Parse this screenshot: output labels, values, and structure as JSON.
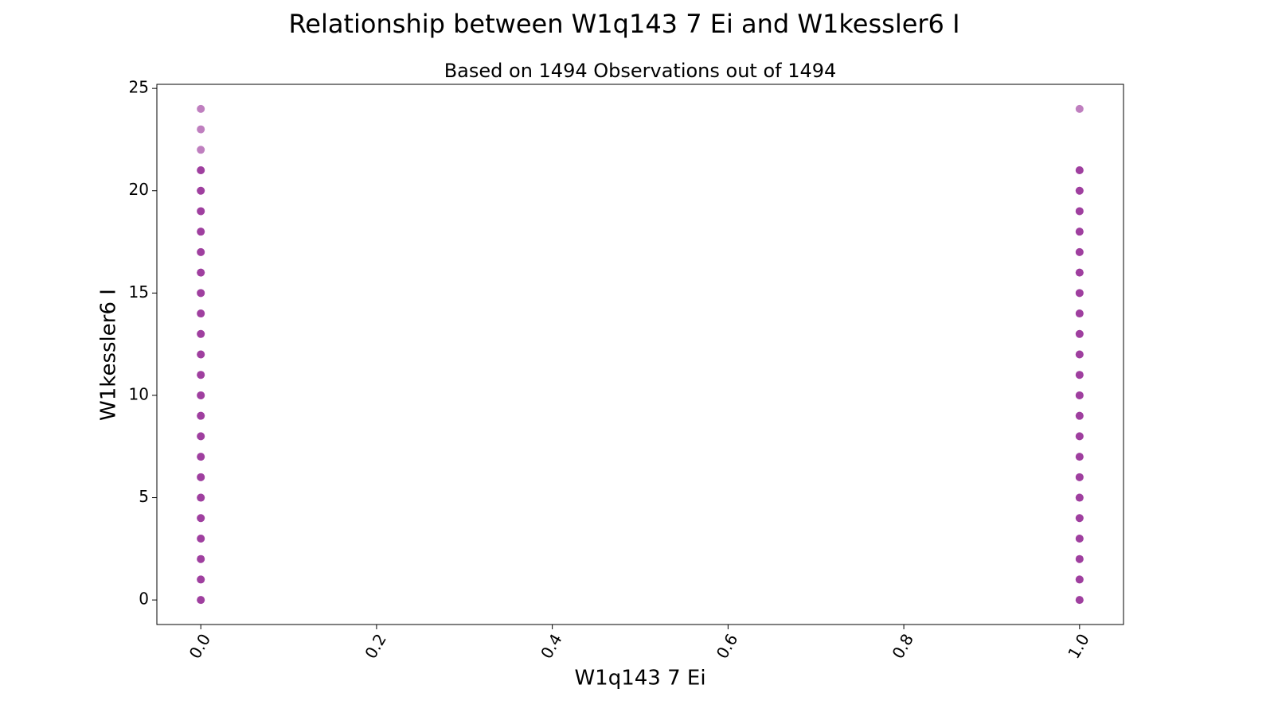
{
  "chart_data": {
    "type": "scatter",
    "title": "Relationship between W1q143 7 Ei and W1kessler6 I",
    "subtitle": "Based on 1494 Observations out of 1494",
    "x_label": "W1q143 7 Ei",
    "y_label": "W1kessler6 I",
    "color": "#800080",
    "alpha": 0.5,
    "x": [
      0,
      0,
      0,
      0,
      0,
      0,
      0,
      0,
      0,
      0,
      0,
      0,
      0,
      0,
      0,
      0,
      0,
      0,
      0,
      0,
      0,
      0,
      0,
      0,
      0,
      0,
      0,
      0,
      0,
      0,
      0,
      0,
      0,
      0,
      0,
      0,
      0,
      0,
      0,
      0,
      0,
      0,
      0,
      0,
      0,
      0,
      0,
      1,
      1,
      1,
      1,
      1,
      1,
      1,
      1,
      1,
      1,
      1,
      1,
      1,
      1,
      1,
      1,
      1,
      1,
      1,
      1,
      1,
      1,
      1,
      1,
      1,
      1,
      1,
      1,
      1,
      1,
      1,
      1,
      1,
      1,
      1,
      1,
      1,
      1,
      1,
      1,
      1,
      1,
      1,
      1,
      1
    ],
    "y": [
      0,
      0,
      1,
      1,
      2,
      2,
      3,
      3,
      4,
      4,
      5,
      5,
      6,
      6,
      7,
      7,
      8,
      8,
      9,
      9,
      10,
      10,
      11,
      11,
      12,
      12,
      13,
      13,
      14,
      14,
      15,
      15,
      16,
      16,
      17,
      17,
      18,
      18,
      19,
      19,
      20,
      20,
      21,
      21,
      22,
      23,
      24,
      0,
      0,
      1,
      1,
      2,
      2,
      3,
      3,
      4,
      4,
      5,
      5,
      6,
      6,
      7,
      7,
      8,
      8,
      9,
      9,
      10,
      10,
      11,
      11,
      12,
      12,
      13,
      13,
      14,
      14,
      15,
      15,
      16,
      16,
      17,
      17,
      18,
      18,
      19,
      19,
      20,
      20,
      21,
      21,
      24
    ],
    "xlim": [
      -0.05,
      1.05
    ],
    "ylim": [
      -1.2,
      25.2
    ],
    "xticks": [
      {
        "value": 0,
        "label": "0.0"
      },
      {
        "value": 0.2,
        "label": "0.2"
      },
      {
        "value": 0.4,
        "label": "0.4"
      },
      {
        "value": 0.6,
        "label": "0.6"
      },
      {
        "value": 0.8,
        "label": "0.8"
      },
      {
        "value": 1,
        "label": "1.0"
      }
    ],
    "yticks": [
      0,
      5,
      10,
      15,
      20,
      25
    ],
    "grid": false
  }
}
